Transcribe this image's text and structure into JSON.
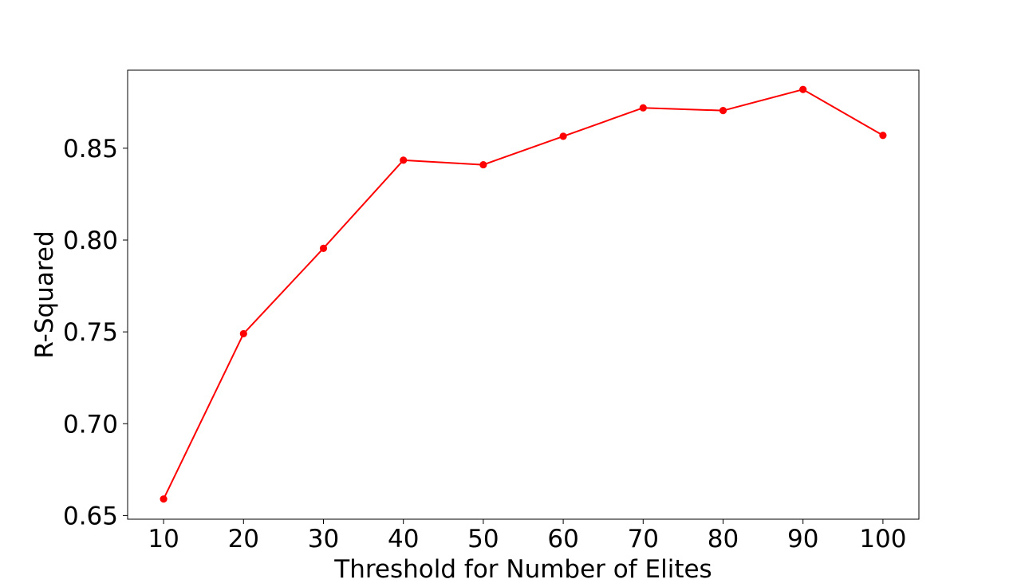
{
  "chart_data": {
    "type": "line",
    "title": "",
    "xlabel": "Threshold for Number of Elites",
    "ylabel": "R-Squared",
    "x": [
      10,
      20,
      30,
      40,
      50,
      60,
      70,
      80,
      90,
      100
    ],
    "series": [
      {
        "values": [
          0.659,
          0.749,
          0.7955,
          0.8435,
          0.841,
          0.8565,
          0.872,
          0.8705,
          0.882,
          0.857
        ],
        "color": "#ff0000",
        "marker": "circle"
      }
    ],
    "xticks": [
      10,
      20,
      30,
      40,
      50,
      60,
      70,
      80,
      90,
      100
    ],
    "xtick_labels": [
      "10",
      "20",
      "30",
      "40",
      "50",
      "60",
      "70",
      "80",
      "90",
      "100"
    ],
    "yticks": [
      0.65,
      0.7,
      0.75,
      0.8,
      0.85
    ],
    "ytick_labels": [
      "0.65",
      "0.70",
      "0.75",
      "0.80",
      "0.85"
    ],
    "xlim": [
      5.5,
      104.5
    ],
    "ylim": [
      0.648,
      0.8925
    ],
    "grid": false,
    "legend": false
  }
}
